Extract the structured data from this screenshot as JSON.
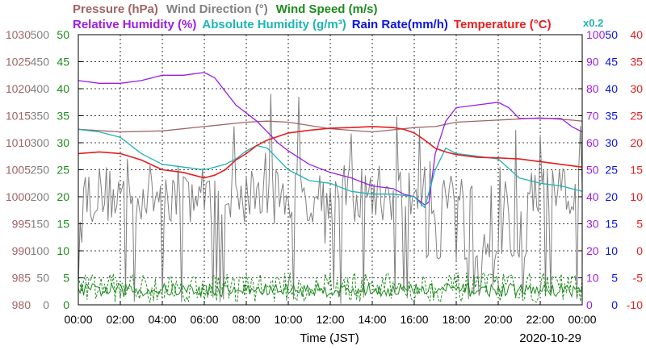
{
  "chart_data": {
    "type": "line",
    "legend": {
      "row1": [
        {
          "label": "Pressure (hPa)",
          "color": "#a06464"
        },
        {
          "label": "Wind Direction (°)",
          "color": "#808080"
        },
        {
          "label": "Wind Speed (m/s)",
          "color": "#1e8c1e"
        }
      ],
      "row2": [
        {
          "label": "Relative Humidity (%)",
          "color": "#9a1ee6"
        },
        {
          "label": "Absolute Humidity (g/m³)",
          "color": "#1eb4b4"
        },
        {
          "label": "Rain Rate(mm/h)",
          "color": "#0a14dc"
        },
        {
          "label": "Temperature (°C)",
          "color": "#e61e1e"
        }
      ],
      "rain_scale_note": "x0.2",
      "rain_scale_note_color": "#1eb4b4"
    },
    "x_axis": {
      "label": "Time (JST)",
      "date": "2020-10-29",
      "ticks": [
        "00:00",
        "02:00",
        "04:00",
        "06:00",
        "08:00",
        "10:00",
        "12:00",
        "14:00",
        "16:00",
        "18:00",
        "20:00",
        "22:00",
        "00:00"
      ],
      "range_hours": [
        0,
        24
      ]
    },
    "y_axes": {
      "pressure": {
        "color": "#a06464",
        "ticks": [
          "1030",
          "1025",
          "1020",
          "1015",
          "1010",
          "1005",
          "1000",
          "995",
          "990",
          "985",
          "980"
        ]
      },
      "wind_direction": {
        "color": "#808080",
        "ticks": [
          "500",
          "450",
          "400",
          "350",
          "300",
          "250",
          "200",
          "150",
          "100",
          "50",
          "0"
        ]
      },
      "wind_speed_abs_humidity": {
        "color": "#1e8c1e",
        "ticks": [
          "50",
          "45",
          "40",
          "35",
          "30",
          "25",
          "20",
          "15",
          "10",
          "5",
          "0"
        ]
      },
      "relative_humidity": {
        "color": "#9a1ee6",
        "ticks": [
          "100",
          "90",
          "80",
          "70",
          "60",
          "50",
          "40",
          "30",
          "20",
          "10",
          "0"
        ]
      },
      "rain_rate": {
        "color": "#0a14dc",
        "ticks": [
          "50",
          "45",
          "40",
          "35",
          "30",
          "25",
          "20",
          "15",
          "10",
          "5",
          "0"
        ]
      },
      "temperature": {
        "color": "#e61e1e",
        "ticks": [
          "40",
          "35",
          "30",
          "25",
          "20",
          "15",
          "10",
          "5",
          "0",
          "-5",
          "-10"
        ]
      }
    },
    "grid": true,
    "series": [
      {
        "name": "Pressure (hPa)",
        "color": "#a06464",
        "range": [
          980,
          1030
        ],
        "x": [
          0,
          2,
          4,
          6,
          8,
          9,
          10,
          12,
          14,
          16,
          17,
          18,
          20,
          22,
          23.5,
          24
        ],
        "y": [
          1012.5,
          1012,
          1012.2,
          1013,
          1013.8,
          1014,
          1013.8,
          1012.6,
          1012,
          1012.8,
          1013,
          1013.8,
          1014.2,
          1014.6,
          1014.2,
          1014
        ]
      },
      {
        "name": "Relative Humidity (%)",
        "color": "#9a1ee6",
        "range": [
          0,
          100
        ],
        "x": [
          0,
          1,
          2,
          3,
          4,
          5,
          6,
          6.5,
          7,
          7.5,
          8,
          8.5,
          9,
          9.5,
          10,
          11,
          12,
          13,
          14,
          15,
          15.5,
          16,
          16.5,
          16.7,
          17,
          17.5,
          18,
          19,
          20,
          20.5,
          21,
          22,
          23,
          23.5,
          24
        ],
        "y": [
          83,
          82,
          82,
          83,
          85,
          85,
          86,
          84,
          79,
          74,
          71,
          68,
          64,
          60,
          57,
          52,
          49,
          47,
          44,
          43,
          41,
          40,
          37,
          38,
          56,
          68,
          73,
          74,
          75,
          73,
          69,
          69,
          69,
          66,
          64
        ]
      },
      {
        "name": "Absolute Humidity (g/m³)",
        "color": "#1eb4b4",
        "range": [
          0,
          50
        ],
        "x": [
          0,
          1,
          2,
          3,
          4,
          5,
          6,
          6.5,
          7,
          7.5,
          8,
          8.5,
          9,
          9.5,
          10,
          11,
          12,
          13,
          14,
          15,
          16,
          16.5,
          17,
          17.5,
          18,
          19,
          20,
          21,
          22,
          23,
          24
        ],
        "y": [
          32.5,
          32,
          31,
          28,
          26,
          25.5,
          25,
          25.5,
          26,
          27,
          28.5,
          29.5,
          29,
          27,
          25,
          23,
          22.5,
          21,
          20.5,
          20.5,
          20,
          18,
          25,
          29,
          28,
          27.5,
          27,
          23.5,
          22.5,
          22,
          21
        ]
      },
      {
        "name": "Temperature (°C)",
        "color": "#e61e1e",
        "range": [
          -10,
          40
        ],
        "x": [
          0,
          1,
          2,
          3,
          4,
          5,
          6,
          6.5,
          7,
          7.5,
          8,
          8.5,
          9,
          10,
          11,
          12,
          13,
          14,
          15,
          15.5,
          16,
          16.5,
          17,
          17.5,
          18,
          19,
          20,
          21,
          22,
          23,
          24
        ],
        "y": [
          18,
          18.3,
          18,
          16.8,
          15,
          14.5,
          13.5,
          14,
          15,
          16.8,
          18,
          19.5,
          20.5,
          21.8,
          22.3,
          22.7,
          22.8,
          23,
          22.8,
          22.5,
          21.8,
          20.5,
          19,
          18.3,
          17.8,
          17.3,
          17.2,
          17,
          16.5,
          16,
          15.5
        ]
      }
    ],
    "noisy_series": [
      {
        "name": "Wind Direction (°)",
        "color": "#808080",
        "range": [
          0,
          500
        ],
        "approx_level": 200
      },
      {
        "name": "Wind Speed (m/s)",
        "color": "#1e8c1e",
        "range": [
          0,
          50
        ],
        "approx_level": 2.5
      }
    ]
  }
}
